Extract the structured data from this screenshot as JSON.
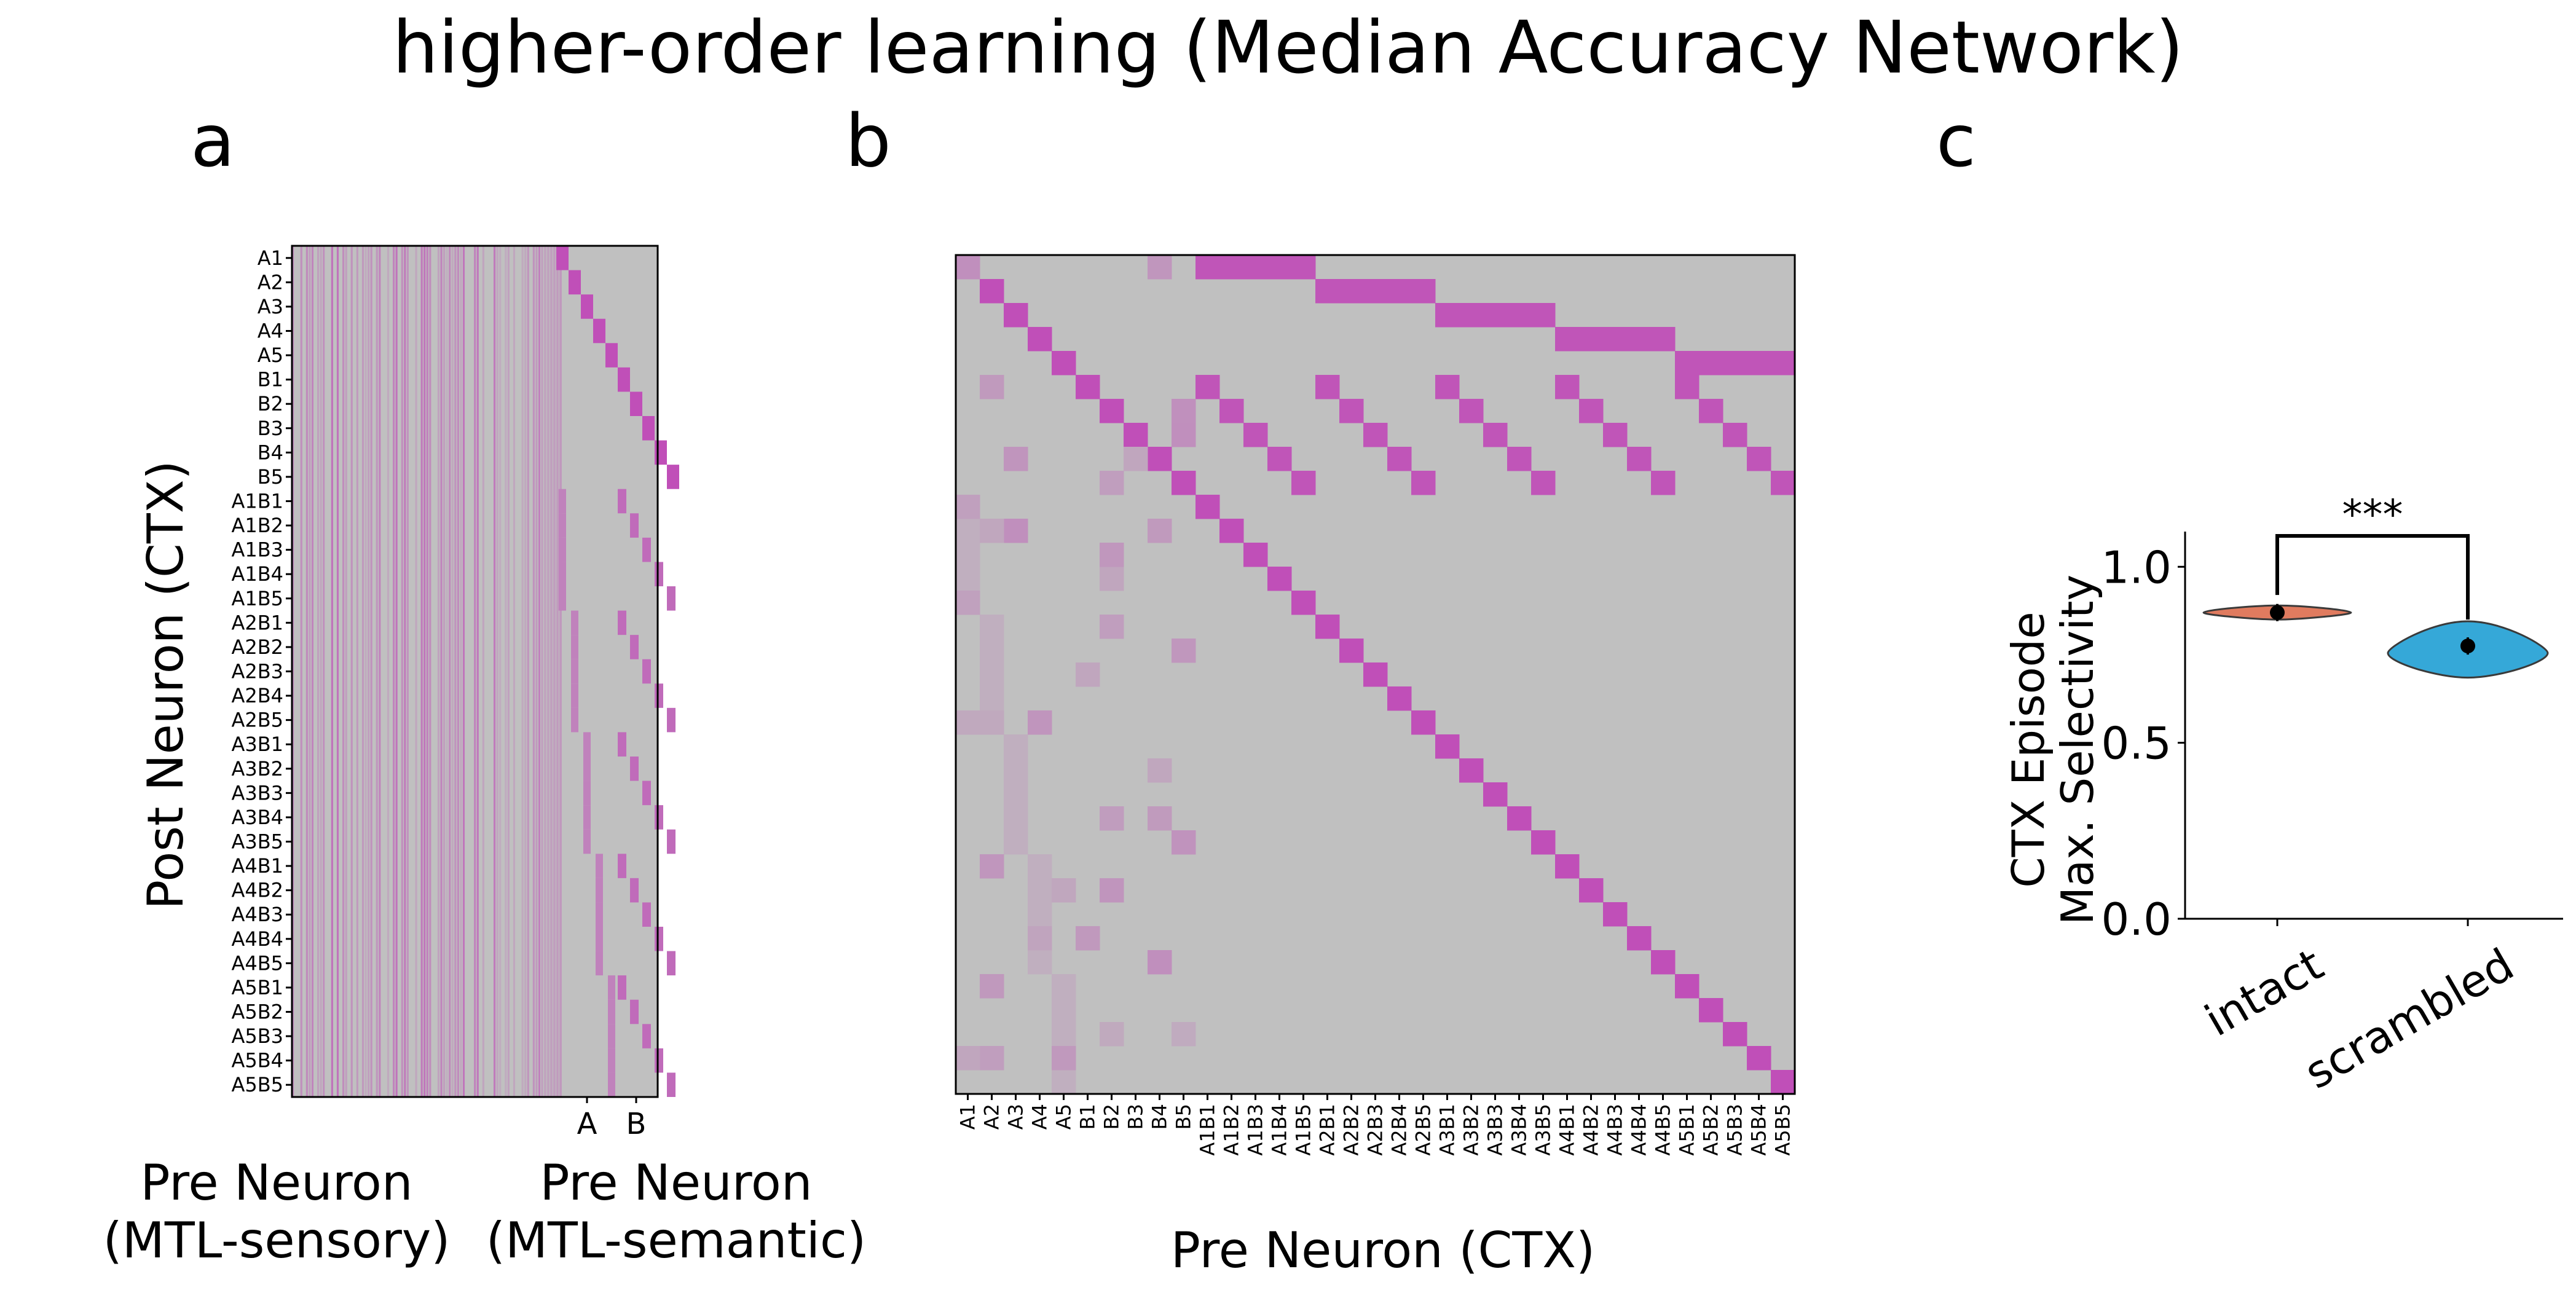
{
  "figure": {
    "title": "higher-order learning (Median Accuracy Network)",
    "panel_letters": [
      "a",
      "b",
      "c"
    ]
  },
  "colors": {
    "background": "#c0c0c0",
    "weight": "#c04fb8",
    "intact": "#e07b5f",
    "scrambled": "#35a8d8",
    "marker": "#000000"
  },
  "panel_a": {
    "ylabel": "Post Neuron (CTX)",
    "xlabel_left_line1": "Pre Neuron",
    "xlabel_left_line2": "(MTL-sensory)",
    "xlabel_right_line1": "Pre Neuron",
    "xlabel_right_line2": "(MTL-semantic)",
    "semantic_ticks": [
      "A",
      "B"
    ]
  },
  "panel_b": {
    "xlabel": "Pre Neuron (CTX)"
  },
  "neuron_labels": [
    "A1",
    "A2",
    "A3",
    "A4",
    "A5",
    "B1",
    "B2",
    "B3",
    "B4",
    "B5",
    "A1B1",
    "A1B2",
    "A1B3",
    "A1B4",
    "A1B5",
    "A2B1",
    "A2B2",
    "A2B3",
    "A2B4",
    "A2B5",
    "A3B1",
    "A3B2",
    "A3B3",
    "A3B4",
    "A3B5",
    "A4B1",
    "A4B2",
    "A4B3",
    "A4B4",
    "A4B5",
    "A5B1",
    "A5B2",
    "A5B3",
    "A5B4",
    "A5B5"
  ],
  "chart_data": [
    {
      "type": "heatmap",
      "panel": "a",
      "rows": "neuron_labels",
      "columns_groups": [
        "MTL-sensory",
        "MTL-semantic"
      ],
      "semantic_tick_labels": [
        "A",
        "B"
      ],
      "colormap": "grey-to-magenta"
    },
    {
      "type": "heatmap",
      "panel": "b",
      "rows": "neuron_labels",
      "columns": "neuron_labels",
      "colormap": "grey-to-magenta",
      "strong_entries": "diagonal; A1..A5 rows connect to their A_iB1..A_iB5 columns; B rows and combined rows connect back"
    },
    {
      "type": "violin",
      "panel": "c",
      "ylabel_line1": "CTX Episode",
      "ylabel_line2": "Max. Selectivity",
      "categories": [
        "intact",
        "scrambled"
      ],
      "medians": [
        0.87,
        0.775
      ],
      "ranges": [
        [
          0.85,
          0.89
        ],
        [
          0.685,
          0.845
        ]
      ],
      "ylim": [
        0.0,
        1.1
      ],
      "yticks": [
        "0.0",
        "0.5",
        "1.0"
      ],
      "significance": "***"
    }
  ]
}
